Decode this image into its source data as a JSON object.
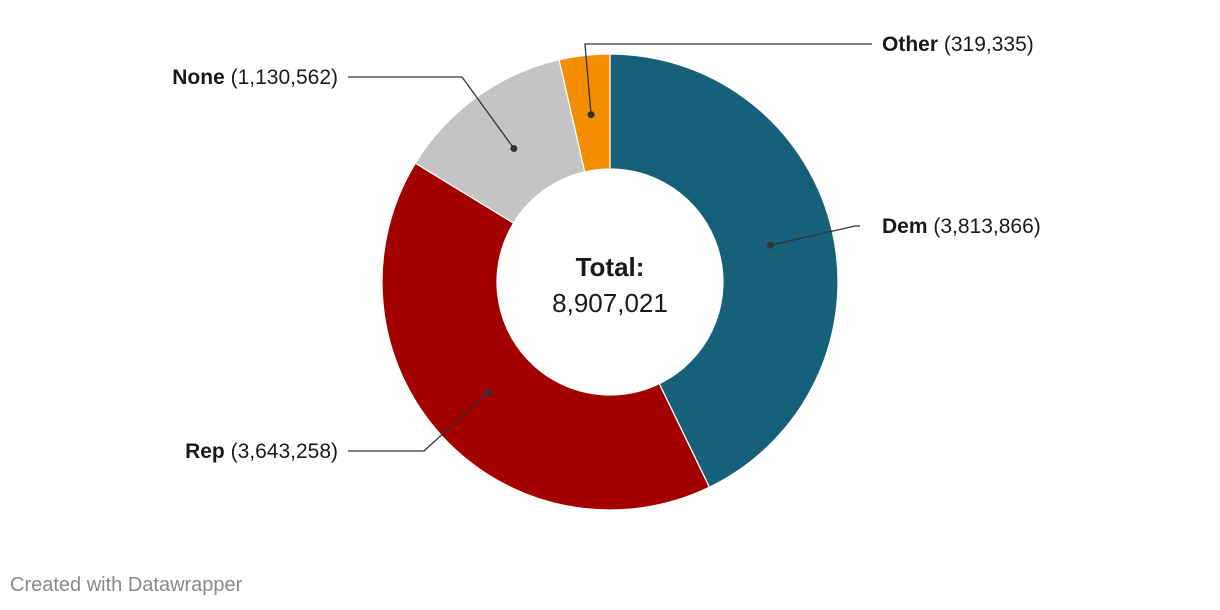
{
  "chart_data": {
    "type": "pie",
    "variant": "donut",
    "slices": [
      {
        "label": "Dem",
        "value": 3813866,
        "value_text": "(3,813,866)",
        "color": "#17607a"
      },
      {
        "label": "Rep",
        "value": 3643258,
        "value_text": "(3,643,258)",
        "color": "#a30000"
      },
      {
        "label": "None",
        "value": 1130562,
        "value_text": "(1,130,562)",
        "color": "#c4c4c4"
      },
      {
        "label": "Other",
        "value": 319335,
        "value_text": "(319,335)",
        "color": "#f28e00"
      }
    ],
    "center_label": {
      "title": "Total:",
      "value": "8,907,021"
    },
    "legend": "none"
  },
  "footer": {
    "credit": "Created with Datawrapper"
  }
}
